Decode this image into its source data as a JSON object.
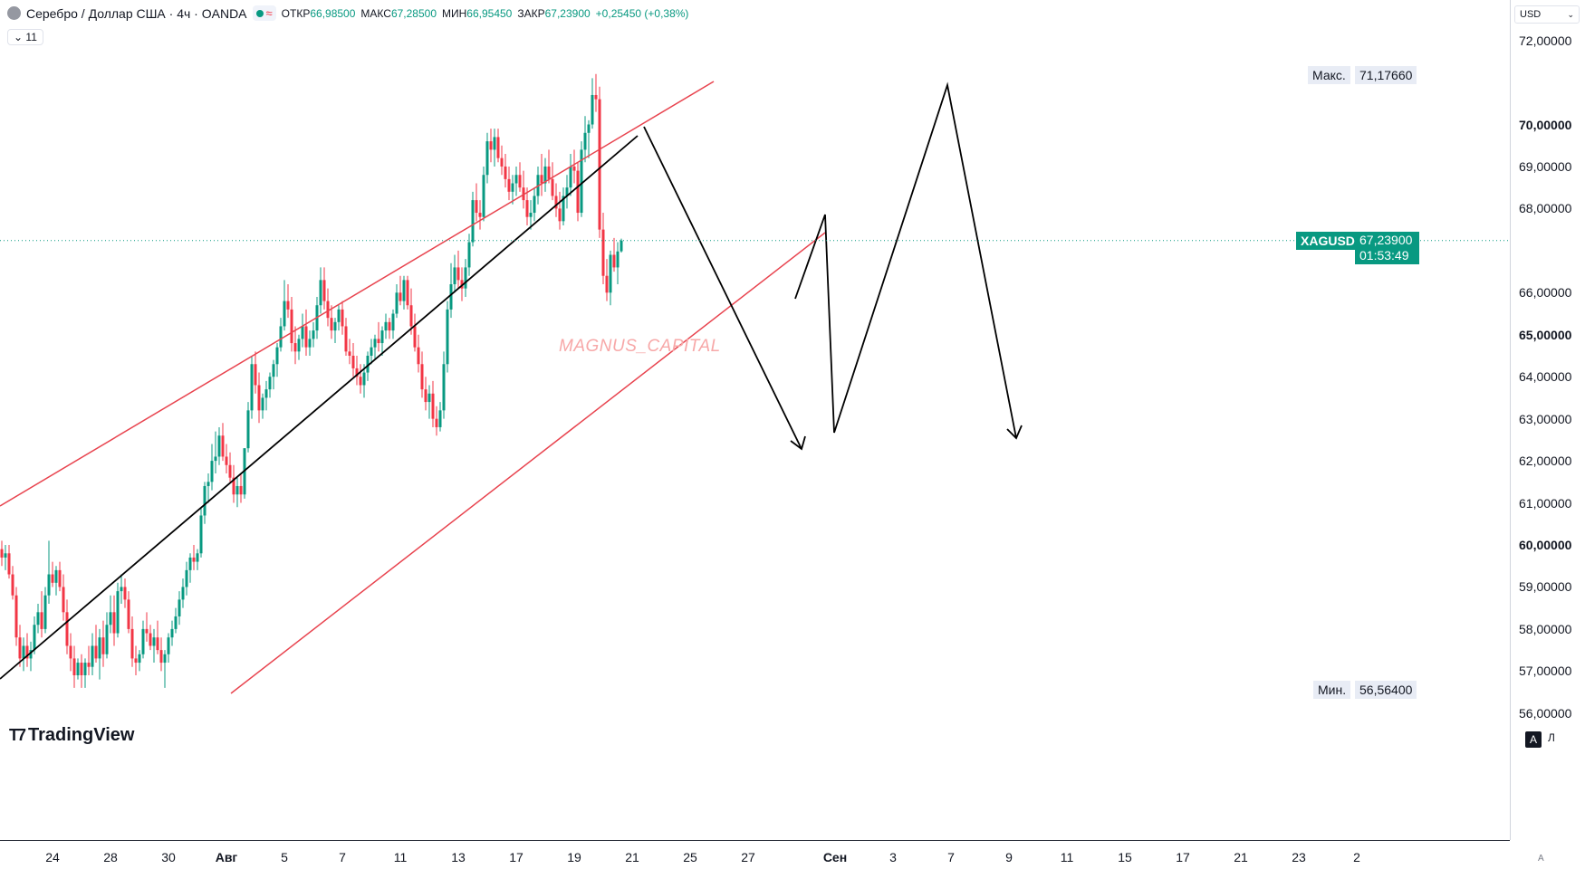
{
  "header": {
    "title": "Серебро / Доллар США · 4ч · OANDA",
    "ohlc": [
      {
        "label": "ОТКР",
        "value": "66,98500"
      },
      {
        "label": "МАКС",
        "value": "67,28500"
      },
      {
        "label": "МИН",
        "value": "66,95450"
      },
      {
        "label": "ЗАКР",
        "value": "67,23900"
      }
    ],
    "change": "+0,25450 (+0,38%)",
    "collapse_label": "11"
  },
  "currency": "USD",
  "watermark": "MAGNUS_CAPITAL",
  "logo_text": "TradingView",
  "scale_buttons": {
    "auto": "A",
    "log": "Л",
    "small": "A"
  },
  "badges": {
    "max_label": "Макс.",
    "max_value": "71,17660",
    "min_label": "Мин.",
    "min_value": "56,56400",
    "symbol": "XAGUSD",
    "last_price": "67,23900",
    "countdown": "01:53:49"
  },
  "colors": {
    "up": "#089981",
    "down": "#f23645",
    "channel": "#e8434e",
    "projection": "#000000",
    "last_price": "#089981"
  },
  "chart_data": {
    "type": "candlestick",
    "symbol": "XAGUSD",
    "timeframe": "4ч",
    "ylim": [
      55.2,
      72.8
    ],
    "price_ticks": [
      {
        "v": 72,
        "t": "72,00000"
      },
      {
        "v": 70,
        "t": "70,00000"
      },
      {
        "v": 69,
        "t": "69,00000"
      },
      {
        "v": 68,
        "t": "68,00000"
      },
      {
        "v": 66,
        "t": "66,00000"
      },
      {
        "v": 65,
        "t": "65,00000"
      },
      {
        "v": 64,
        "t": "64,00000"
      },
      {
        "v": 63,
        "t": "63,00000"
      },
      {
        "v": 62,
        "t": "62,00000"
      },
      {
        "v": 61,
        "t": "61,00000"
      },
      {
        "v": 60,
        "t": "60,00000"
      },
      {
        "v": 59,
        "t": "59,00000"
      },
      {
        "v": 58,
        "t": "58,00000"
      },
      {
        "v": 57,
        "t": "57,00000"
      },
      {
        "v": 56,
        "t": "56,00000"
      }
    ],
    "time_ticks": [
      {
        "i": 6,
        "t": "24"
      },
      {
        "i": 22,
        "t": "28"
      },
      {
        "i": 38,
        "t": "30"
      },
      {
        "i": 54,
        "t": "Авг",
        "bold": true
      },
      {
        "i": 70,
        "t": "5"
      },
      {
        "i": 86,
        "t": "7"
      },
      {
        "i": 102,
        "t": "11"
      },
      {
        "i": 118,
        "t": "13"
      },
      {
        "i": 134,
        "t": "17"
      },
      {
        "i": 150,
        "t": "19"
      },
      {
        "i": 166,
        "t": "21"
      },
      {
        "i": 182,
        "t": "25"
      },
      {
        "i": 198,
        "t": "27"
      },
      {
        "i": 222,
        "t": "Сен",
        "bold": true
      },
      {
        "i": 238,
        "t": "3"
      },
      {
        "i": 254,
        "t": "7"
      },
      {
        "i": 270,
        "t": "9"
      },
      {
        "i": 286,
        "t": "11"
      },
      {
        "i": 302,
        "t": "15"
      },
      {
        "i": 318,
        "t": "17"
      },
      {
        "i": 334,
        "t": "21"
      },
      {
        "i": 350,
        "t": "23"
      },
      {
        "i": 366,
        "t": "2"
      }
    ],
    "last_price": 67.239,
    "candles": [
      [
        59.9,
        60.1,
        59.5,
        59.7
      ],
      [
        59.7,
        60.0,
        59.4,
        59.8
      ],
      [
        59.8,
        60.0,
        59.2,
        59.3
      ],
      [
        59.3,
        59.5,
        58.7,
        58.8
      ],
      [
        58.8,
        59.0,
        57.6,
        57.8
      ],
      [
        57.8,
        58.1,
        57.1,
        57.3
      ],
      [
        57.3,
        57.8,
        57.0,
        57.6
      ],
      [
        57.6,
        57.9,
        57.1,
        57.3
      ],
      [
        57.3,
        57.7,
        57.0,
        57.5
      ],
      [
        57.5,
        58.3,
        57.4,
        58.1
      ],
      [
        58.1,
        58.6,
        57.9,
        58.4
      ],
      [
        58.4,
        58.9,
        57.8,
        58.0
      ],
      [
        58.0,
        59.0,
        57.9,
        58.8
      ],
      [
        58.8,
        60.1,
        58.6,
        59.3
      ],
      [
        59.3,
        59.6,
        59.0,
        59.1
      ],
      [
        59.1,
        59.5,
        58.8,
        59.4
      ],
      [
        59.4,
        59.6,
        58.9,
        59.0
      ],
      [
        59.0,
        59.3,
        58.2,
        58.4
      ],
      [
        58.4,
        58.7,
        57.4,
        57.6
      ],
      [
        57.6,
        57.9,
        57.0,
        57.3
      ],
      [
        57.3,
        57.6,
        56.6,
        56.9
      ],
      [
        56.9,
        57.3,
        56.8,
        57.2
      ],
      [
        57.2,
        57.4,
        56.6,
        56.9
      ],
      [
        56.9,
        57.3,
        56.6,
        57.2
      ],
      [
        57.2,
        57.6,
        56.9,
        57.1
      ],
      [
        57.1,
        57.9,
        56.9,
        57.6
      ],
      [
        57.6,
        58.1,
        57.2,
        57.3
      ],
      [
        57.3,
        58.0,
        56.8,
        57.8
      ],
      [
        57.8,
        58.2,
        57.1,
        57.4
      ],
      [
        57.4,
        58.4,
        57.3,
        58.1
      ],
      [
        58.1,
        58.8,
        57.9,
        58.4
      ],
      [
        58.4,
        58.8,
        57.6,
        57.9
      ],
      [
        57.9,
        59.1,
        57.8,
        58.9
      ],
      [
        58.9,
        59.3,
        58.6,
        59.0
      ],
      [
        59.0,
        59.2,
        58.5,
        58.7
      ],
      [
        58.7,
        58.9,
        57.9,
        58.0
      ],
      [
        58.0,
        58.3,
        57.1,
        57.3
      ],
      [
        57.3,
        57.6,
        56.9,
        57.2
      ],
      [
        57.2,
        57.5,
        57.0,
        57.4
      ],
      [
        57.4,
        58.2,
        57.3,
        58.0
      ],
      [
        58.0,
        58.4,
        57.7,
        57.9
      ],
      [
        57.9,
        58.1,
        57.5,
        57.6
      ],
      [
        57.6,
        58.0,
        57.2,
        57.8
      ],
      [
        57.8,
        58.2,
        57.4,
        57.5
      ],
      [
        57.5,
        57.8,
        57.0,
        57.2
      ],
      [
        57.2,
        57.5,
        56.6,
        57.4
      ],
      [
        57.4,
        57.9,
        57.2,
        57.8
      ],
      [
        57.8,
        58.2,
        57.6,
        58.0
      ],
      [
        58.0,
        58.5,
        57.9,
        58.3
      ],
      [
        58.3,
        58.9,
        58.1,
        58.7
      ],
      [
        58.7,
        59.2,
        58.5,
        59.0
      ],
      [
        59.0,
        59.6,
        58.8,
        59.4
      ],
      [
        59.4,
        59.8,
        59.1,
        59.7
      ],
      [
        59.7,
        60.0,
        59.4,
        59.6
      ],
      [
        59.6,
        59.9,
        59.4,
        59.8
      ],
      [
        59.8,
        60.9,
        59.7,
        60.7
      ],
      [
        60.7,
        61.5,
        60.5,
        61.4
      ],
      [
        61.4,
        61.7,
        61.0,
        61.5
      ],
      [
        61.5,
        62.4,
        61.3,
        62.0
      ],
      [
        62.0,
        62.7,
        61.7,
        62.1
      ],
      [
        62.1,
        62.8,
        61.9,
        62.6
      ],
      [
        62.6,
        62.9,
        62.0,
        62.1
      ],
      [
        62.1,
        62.4,
        61.7,
        61.9
      ],
      [
        61.9,
        62.2,
        61.5,
        61.6
      ],
      [
        61.6,
        61.9,
        61.0,
        61.2
      ],
      [
        61.2,
        61.6,
        60.9,
        61.4
      ],
      [
        61.4,
        61.7,
        61.0,
        61.2
      ],
      [
        61.2,
        62.3,
        61.1,
        62.3
      ],
      [
        62.3,
        63.4,
        62.2,
        63.2
      ],
      [
        63.2,
        64.5,
        63.0,
        64.3
      ],
      [
        64.3,
        64.6,
        63.6,
        63.8
      ],
      [
        63.8,
        64.1,
        62.9,
        63.2
      ],
      [
        63.2,
        63.6,
        63.0,
        63.5
      ],
      [
        63.5,
        63.9,
        63.2,
        63.7
      ],
      [
        63.7,
        64.1,
        63.5,
        64.0
      ],
      [
        64.0,
        64.4,
        63.7,
        64.3
      ],
      [
        64.3,
        64.8,
        64.0,
        64.7
      ],
      [
        64.7,
        65.4,
        64.6,
        65.2
      ],
      [
        65.2,
        66.3,
        65.1,
        65.8
      ],
      [
        65.8,
        66.2,
        65.4,
        65.6
      ],
      [
        65.6,
        65.9,
        64.6,
        64.8
      ],
      [
        64.8,
        65.2,
        64.3,
        64.6
      ],
      [
        64.6,
        65.0,
        64.4,
        64.9
      ],
      [
        64.9,
        65.5,
        64.7,
        65.2
      ],
      [
        65.2,
        65.6,
        64.5,
        64.7
      ],
      [
        64.7,
        65.1,
        64.5,
        64.9
      ],
      [
        64.9,
        65.3,
        64.7,
        65.1
      ],
      [
        65.1,
        65.9,
        64.9,
        65.7
      ],
      [
        65.7,
        66.6,
        65.5,
        66.3
      ],
      [
        66.3,
        66.6,
        65.6,
        65.8
      ],
      [
        65.8,
        66.1,
        65.2,
        65.4
      ],
      [
        65.4,
        65.7,
        64.9,
        65.1
      ],
      [
        65.1,
        65.4,
        64.8,
        65.3
      ],
      [
        65.3,
        65.7,
        65.1,
        65.6
      ],
      [
        65.6,
        65.8,
        65.0,
        65.2
      ],
      [
        65.2,
        65.4,
        64.5,
        64.6
      ],
      [
        64.6,
        64.9,
        64.3,
        64.5
      ],
      [
        64.5,
        64.8,
        64.0,
        64.2
      ],
      [
        64.2,
        64.5,
        63.8,
        64.0
      ],
      [
        64.0,
        64.3,
        63.6,
        63.8
      ],
      [
        63.8,
        64.3,
        63.5,
        64.1
      ],
      [
        64.1,
        64.6,
        63.9,
        64.5
      ],
      [
        64.5,
        64.9,
        64.3,
        64.7
      ],
      [
        64.7,
        65.0,
        64.4,
        64.9
      ],
      [
        64.9,
        65.3,
        64.6,
        64.8
      ],
      [
        64.8,
        65.2,
        64.5,
        65.1
      ],
      [
        65.1,
        65.5,
        64.9,
        65.3
      ],
      [
        65.3,
        65.4,
        64.9,
        65.1
      ],
      [
        65.1,
        65.6,
        64.9,
        65.5
      ],
      [
        65.5,
        66.2,
        65.4,
        66.0
      ],
      [
        66.0,
        66.4,
        65.7,
        65.8
      ],
      [
        65.8,
        66.4,
        65.6,
        66.3
      ],
      [
        66.3,
        66.4,
        65.6,
        65.7
      ],
      [
        65.7,
        66.1,
        65.0,
        65.2
      ],
      [
        65.2,
        65.5,
        64.6,
        64.7
      ],
      [
        64.7,
        65.0,
        64.1,
        64.3
      ],
      [
        64.3,
        64.6,
        63.5,
        63.7
      ],
      [
        63.7,
        64.0,
        63.2,
        63.4
      ],
      [
        63.4,
        63.8,
        63.0,
        63.6
      ],
      [
        63.6,
        63.9,
        62.8,
        63.0
      ],
      [
        63.0,
        63.3,
        62.6,
        62.8
      ],
      [
        62.8,
        63.4,
        62.7,
        63.2
      ],
      [
        63.2,
        64.6,
        63.0,
        64.3
      ],
      [
        64.3,
        65.8,
        64.1,
        65.6
      ],
      [
        65.6,
        66.7,
        65.4,
        66.2
      ],
      [
        66.2,
        66.9,
        66.0,
        66.6
      ],
      [
        66.6,
        67.0,
        66.1,
        66.3
      ],
      [
        66.3,
        66.6,
        65.8,
        66.1
      ],
      [
        66.1,
        66.8,
        65.9,
        66.6
      ],
      [
        66.6,
        67.4,
        66.4,
        67.2
      ],
      [
        67.2,
        68.4,
        67.1,
        68.2
      ],
      [
        68.2,
        68.6,
        67.7,
        67.9
      ],
      [
        67.9,
        68.2,
        67.5,
        67.8
      ],
      [
        67.8,
        69.0,
        67.7,
        68.8
      ],
      [
        68.8,
        69.8,
        68.6,
        69.6
      ],
      [
        69.6,
        69.9,
        69.1,
        69.4
      ],
      [
        69.4,
        69.9,
        69.0,
        69.7
      ],
      [
        69.7,
        69.9,
        69.1,
        69.2
      ],
      [
        69.2,
        69.5,
        68.8,
        69.0
      ],
      [
        69.0,
        69.3,
        68.5,
        68.7
      ],
      [
        68.7,
        69.0,
        68.2,
        68.4
      ],
      [
        68.4,
        68.8,
        68.1,
        68.6
      ],
      [
        68.6,
        69.0,
        68.3,
        68.8
      ],
      [
        68.8,
        69.1,
        68.4,
        68.5
      ],
      [
        68.5,
        68.9,
        68.0,
        68.2
      ],
      [
        68.2,
        68.5,
        67.6,
        67.8
      ],
      [
        67.8,
        68.2,
        67.5,
        67.9
      ],
      [
        67.9,
        68.5,
        67.7,
        68.3
      ],
      [
        68.3,
        69.0,
        68.1,
        68.8
      ],
      [
        68.8,
        69.3,
        68.3,
        68.6
      ],
      [
        68.6,
        69.2,
        68.4,
        69.0
      ],
      [
        69.0,
        69.4,
        68.6,
        68.7
      ],
      [
        68.7,
        69.1,
        68.2,
        68.3
      ],
      [
        68.3,
        68.6,
        67.8,
        68.0
      ],
      [
        68.0,
        68.4,
        67.5,
        67.7
      ],
      [
        67.7,
        68.5,
        67.6,
        68.3
      ],
      [
        68.3,
        68.8,
        68.0,
        68.5
      ],
      [
        68.5,
        69.3,
        68.3,
        69.0
      ],
      [
        69.0,
        69.4,
        68.6,
        68.9
      ],
      [
        68.9,
        69.1,
        67.7,
        67.9
      ],
      [
        67.9,
        69.6,
        67.8,
        69.4
      ],
      [
        69.4,
        70.2,
        69.1,
        69.8
      ],
      [
        69.8,
        70.1,
        69.2,
        70.0
      ],
      [
        70.0,
        71.1,
        69.9,
        70.7
      ],
      [
        70.7,
        71.2,
        70.3,
        70.6
      ],
      [
        70.6,
        70.9,
        67.3,
        67.5
      ],
      [
        67.5,
        67.9,
        66.2,
        66.4
      ],
      [
        66.4,
        66.8,
        65.8,
        66.0
      ],
      [
        66.0,
        67.0,
        65.7,
        66.9
      ],
      [
        66.9,
        67.3,
        66.5,
        66.6
      ],
      [
        66.6,
        67.2,
        66.2,
        66.98
      ],
      [
        66.985,
        67.285,
        66.9545,
        67.239
      ]
    ]
  }
}
